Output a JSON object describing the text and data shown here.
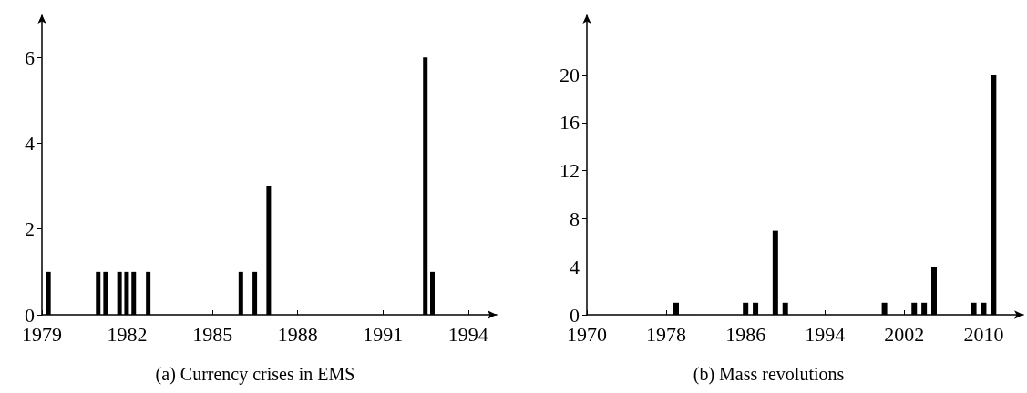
{
  "chart_data": [
    {
      "type": "bar",
      "title": "(a) Currency crises in EMS",
      "x": [
        1979.23,
        1980.98,
        1981.24,
        1981.73,
        1981.98,
        1982.23,
        1982.74,
        1986.0,
        1986.49,
        1986.98,
        1992.49,
        1992.74
      ],
      "values": [
        1,
        1,
        1,
        1,
        1,
        1,
        1,
        1,
        1,
        3,
        6,
        1
      ],
      "color": "#000000",
      "xlim": [
        1979,
        1995
      ],
      "xticks": [
        1979,
        1982,
        1985,
        1988,
        1991,
        1994
      ],
      "ylim": [
        0,
        7
      ],
      "yticks": [
        0,
        2,
        4,
        6
      ],
      "grid": false
    },
    {
      "type": "bar",
      "title": "(b) Mass revolutions",
      "x": [
        1979,
        1986,
        1987,
        1989,
        1990,
        2000,
        2003,
        2004,
        2005,
        2009,
        2010,
        2011
      ],
      "values": [
        1,
        1,
        1,
        7,
        1,
        1,
        1,
        1,
        4,
        1,
        1,
        20
      ],
      "color": "#000000",
      "xlim": [
        1970,
        2014
      ],
      "xticks": [
        1970,
        1978,
        1986,
        1994,
        2002,
        2010
      ],
      "ylim": [
        0,
        25
      ],
      "yticks": [
        0,
        4,
        8,
        12,
        16,
        20
      ],
      "grid": false
    }
  ]
}
